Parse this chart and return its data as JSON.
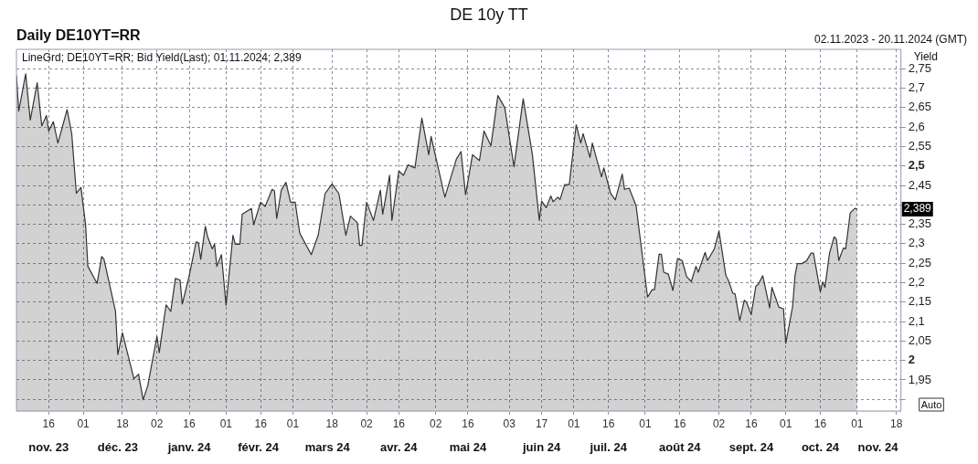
{
  "chart_data": {
    "type": "area",
    "title": "DE 10y TT",
    "subtitle": "Daily DE10YT=RR",
    "ylabel": "Yield",
    "annotations": [
      "02.11.2023 - 20.11.2024 (GMT)",
      "LineGrd; DE10YT=RR; Bid Yield(Last); 01.11.2024; 2,389",
      "Auto",
      "2,389"
    ],
    "x": [
      "2023-11-02",
      "2023-11-03",
      "2023-11-06",
      "2023-11-08",
      "2023-11-11",
      "2023-11-13",
      "2023-11-15",
      "2023-11-16",
      "2023-11-18",
      "2023-11-20",
      "2023-11-24",
      "2023-11-26",
      "2023-11-28",
      "2023-11-30",
      "2023-12-02",
      "2023-12-03",
      "2023-12-07",
      "2023-12-09",
      "2023-12-10",
      "2023-12-15",
      "2023-12-16",
      "2023-12-18",
      "2023-12-23",
      "2023-12-25",
      "2023-12-27",
      "2023-12-29",
      "2024-01-02",
      "2024-01-03",
      "2024-01-05",
      "2024-01-06",
      "2024-01-08",
      "2024-01-10",
      "2024-01-12",
      "2024-01-13",
      "2024-01-16",
      "2024-01-19",
      "2024-01-20",
      "2024-01-21",
      "2024-01-23",
      "2024-01-24",
      "2024-01-26",
      "2024-01-27",
      "2024-01-28",
      "2024-01-30",
      "2024-02-01",
      "2024-02-04",
      "2024-02-05",
      "2024-02-07",
      "2024-02-08",
      "2024-02-12",
      "2024-02-13",
      "2024-02-16",
      "2024-02-18",
      "2024-02-21",
      "2024-02-22",
      "2024-02-23",
      "2024-02-25",
      "2024-02-27",
      "2024-02-29",
      "2024-03-02",
      "2024-03-04",
      "2024-03-09",
      "2024-03-12",
      "2024-03-15",
      "2024-03-18",
      "2024-03-21",
      "2024-03-24",
      "2024-03-26",
      "2024-03-29",
      "2024-03-30",
      "2024-03-31",
      "2024-04-02",
      "2024-04-05",
      "2024-04-08",
      "2024-04-09",
      "2024-04-12",
      "2024-04-13",
      "2024-04-16",
      "2024-04-18",
      "2024-04-20",
      "2024-04-23",
      "2024-04-26",
      "2024-04-29",
      "2024-04-30",
      "2024-05-06",
      "2024-05-11",
      "2024-05-13",
      "2024-05-15",
      "2024-05-18",
      "2024-05-21",
      "2024-05-23",
      "2024-05-26",
      "2024-05-29",
      "2024-06-01",
      "2024-06-05",
      "2024-06-09",
      "2024-06-13",
      "2024-06-16",
      "2024-06-17",
      "2024-06-19",
      "2024-06-21",
      "2024-06-22",
      "2024-06-24",
      "2024-06-25",
      "2024-06-27",
      "2024-06-29",
      "2024-07-02",
      "2024-07-04",
      "2024-07-05",
      "2024-07-08",
      "2024-07-09",
      "2024-07-13",
      "2024-07-14",
      "2024-07-17",
      "2024-07-19",
      "2024-07-22",
      "2024-07-23",
      "2024-07-25",
      "2024-07-28",
      "2024-07-31",
      "2024-08-02",
      "2024-08-04",
      "2024-08-05",
      "2024-08-07",
      "2024-08-08",
      "2024-08-09",
      "2024-08-11",
      "2024-08-13",
      "2024-08-15",
      "2024-08-17",
      "2024-08-19",
      "2024-08-21",
      "2024-08-23",
      "2024-08-24",
      "2024-08-27",
      "2024-08-28",
      "2024-08-31",
      "2024-09-02",
      "2024-09-05",
      "2024-09-06",
      "2024-09-08",
      "2024-09-09",
      "2024-09-11",
      "2024-09-13",
      "2024-09-14",
      "2024-09-16",
      "2024-09-18",
      "2024-09-19",
      "2024-09-21",
      "2024-09-24",
      "2024-09-25",
      "2024-09-28",
      "2024-09-30",
      "2024-10-01",
      "2024-10-04",
      "2024-10-05",
      "2024-10-06",
      "2024-10-08",
      "2024-10-10",
      "2024-10-12",
      "2024-10-13",
      "2024-10-16",
      "2024-10-17",
      "2024-10-18",
      "2024-10-20",
      "2024-10-22",
      "2024-10-23",
      "2024-10-24",
      "2024-10-26",
      "2024-10-27",
      "2024-10-28",
      "2024-10-29",
      "2024-10-31",
      "2024-11-01"
    ],
    "series": [
      {
        "color": "#333333",
        "values": [
          2.733,
          2.641,
          2.737,
          2.618,
          2.714,
          2.603,
          2.63,
          2.59,
          2.614,
          2.559,
          2.645,
          2.583,
          2.43,
          2.445,
          2.35,
          2.242,
          2.198,
          2.267,
          2.26,
          2.126,
          2.015,
          2.071,
          1.953,
          1.965,
          1.899,
          1.935,
          2.062,
          2.02,
          2.104,
          2.143,
          2.126,
          2.211,
          2.207,
          2.145,
          2.218,
          2.305,
          2.303,
          2.26,
          2.345,
          2.318,
          2.287,
          2.299,
          2.242,
          2.272,
          2.142,
          2.322,
          2.299,
          2.299,
          2.376,
          2.391,
          2.349,
          2.407,
          2.396,
          2.44,
          2.436,
          2.365,
          2.438,
          2.458,
          2.407,
          2.407,
          2.327,
          2.272,
          2.322,
          2.429,
          2.454,
          2.429,
          2.322,
          2.371,
          2.354,
          2.296,
          2.296,
          2.407,
          2.36,
          2.438,
          2.376,
          2.476,
          2.36,
          2.487,
          2.476,
          2.503,
          2.495,
          2.623,
          2.529,
          2.576,
          2.42,
          2.518,
          2.537,
          2.426,
          2.529,
          2.514,
          2.59,
          2.552,
          2.681,
          2.65,
          2.498,
          2.673,
          2.529,
          2.36,
          2.41,
          2.393,
          2.423,
          2.408,
          2.42,
          2.414,
          2.452,
          2.452,
          2.606,
          2.559,
          2.583,
          2.522,
          2.559,
          2.472,
          2.495,
          2.429,
          2.413,
          2.479,
          2.44,
          2.443,
          2.398,
          2.257,
          2.163,
          2.182,
          2.182,
          2.273,
          2.273,
          2.227,
          2.222,
          2.18,
          2.262,
          2.257,
          2.215,
          2.203,
          2.242,
          2.227,
          2.278,
          2.257,
          2.287,
          2.333,
          2.218,
          2.207,
          2.173,
          2.171,
          2.102,
          2.155,
          2.149,
          2.118,
          2.191,
          2.195,
          2.218,
          2.135,
          2.188,
          2.137,
          2.133,
          2.044,
          2.14,
          2.218,
          2.249,
          2.249,
          2.256,
          2.276,
          2.276,
          2.176,
          2.202,
          2.188,
          2.276,
          2.318,
          2.311,
          2.257,
          2.289,
          2.287,
          2.333,
          2.38,
          2.391,
          2.389
        ]
      }
    ],
    "xlim": [
      "2023-11-02",
      "2024-11-20"
    ],
    "xticks": [
      {
        "value": "2023-11-16",
        "label": "16"
      },
      {
        "value": "2023-12-01",
        "label": "01"
      },
      {
        "value": "2023-12-18",
        "label": "18"
      },
      {
        "value": "2024-01-02",
        "label": "02"
      },
      {
        "value": "2024-01-16",
        "label": "16"
      },
      {
        "value": "2024-02-01",
        "label": "01"
      },
      {
        "value": "2024-02-16",
        "label": "16"
      },
      {
        "value": "2024-03-01",
        "label": "01"
      },
      {
        "value": "2024-03-18",
        "label": "18"
      },
      {
        "value": "2024-04-02",
        "label": "02"
      },
      {
        "value": "2024-04-16",
        "label": "16"
      },
      {
        "value": "2024-05-02",
        "label": "02"
      },
      {
        "value": "2024-05-16",
        "label": "16"
      },
      {
        "value": "2024-06-03",
        "label": "03"
      },
      {
        "value": "2024-06-17",
        "label": "17"
      },
      {
        "value": "2024-07-01",
        "label": "01"
      },
      {
        "value": "2024-07-16",
        "label": "16"
      },
      {
        "value": "2024-08-01",
        "label": "01"
      },
      {
        "value": "2024-08-16",
        "label": "16"
      },
      {
        "value": "2024-09-02",
        "label": "02"
      },
      {
        "value": "2024-09-16",
        "label": "16"
      },
      {
        "value": "2024-10-01",
        "label": "01"
      },
      {
        "value": "2024-10-16",
        "label": "16"
      },
      {
        "value": "2024-11-01",
        "label": "01"
      },
      {
        "value": "2024-11-18",
        "label": "18"
      }
    ],
    "x2lim": [
      "2023-11-02",
      "2024-11-20"
    ],
    "x2ticks": [
      {
        "value": "2023-11-16",
        "label": "nov. 23"
      },
      {
        "value": "2023-12-16",
        "label": "déc. 23"
      },
      {
        "value": "2024-01-16",
        "label": "janv. 24"
      },
      {
        "value": "2024-02-15",
        "label": "févr. 24"
      },
      {
        "value": "2024-03-16",
        "label": "mars 24"
      },
      {
        "value": "2024-04-16",
        "label": "avr. 24"
      },
      {
        "value": "2024-05-16",
        "label": "mai 24"
      },
      {
        "value": "2024-06-17",
        "label": "juin 24"
      },
      {
        "value": "2024-07-16",
        "label": "juil. 24"
      },
      {
        "value": "2024-08-16",
        "label": "août 24"
      },
      {
        "value": "2024-09-16",
        "label": "sept. 24"
      },
      {
        "value": "2024-10-16",
        "label": "oct. 24"
      },
      {
        "value": "2024-11-10",
        "label": "nov. 24"
      }
    ],
    "ylim": [
      1.87,
      2.8
    ],
    "yticks": [
      {
        "value": 1.9,
        "label": null
      },
      {
        "value": 1.95,
        "label": "1,95"
      },
      {
        "value": 2,
        "label": "2"
      },
      {
        "value": 2.05,
        "label": "2,05"
      },
      {
        "value": 2.1,
        "label": "2,1"
      },
      {
        "value": 2.15,
        "label": "2,15"
      },
      {
        "value": 2.2,
        "label": "2,2"
      },
      {
        "value": 2.25,
        "label": "2,25"
      },
      {
        "value": 2.3,
        "label": "2,3"
      },
      {
        "value": 2.35,
        "label": "2,35"
      },
      {
        "value": 2.4,
        "label": null
      },
      {
        "value": 2.45,
        "label": "2,45"
      },
      {
        "value": 2.5,
        "label": "2,5"
      },
      {
        "value": 2.55,
        "label": "2,55"
      },
      {
        "value": 2.6,
        "label": "2,6"
      },
      {
        "value": 2.65,
        "label": "2,65"
      },
      {
        "value": 2.7,
        "label": "2,7"
      },
      {
        "value": 2.75,
        "label": "2,75"
      }
    ],
    "grid": true,
    "legend": false
  }
}
